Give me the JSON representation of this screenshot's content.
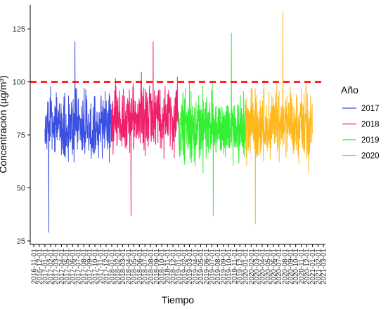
{
  "chart_data": {
    "type": "line",
    "xlabel": "Tiempo",
    "ylabel": "Concentración (µg/m³)",
    "ylim": [
      25,
      135
    ],
    "y_ticks": [
      25,
      50,
      75,
      100,
      125
    ],
    "x_range": [
      "2016-11-01",
      "2021-03-01"
    ],
    "x_tick_labels": [
      "2016-11-01",
      "2016-12-01",
      "2017-01-01",
      "2017-02-01",
      "2017-03-01",
      "2017-04-01",
      "2017-05-01",
      "2017-06-01",
      "2017-07-01",
      "2017-08-01",
      "2017-09-01",
      "2017-10-01",
      "2017-11-01",
      "2017-12-01",
      "2018-01-01",
      "2018-02-01",
      "2018-03-01",
      "2018-04-01",
      "2018-05-01",
      "2018-06-01",
      "2018-07-01",
      "2018-08-01",
      "2018-09-01",
      "2018-10-01",
      "2018-11-01",
      "2018-12-01",
      "2019-01-01",
      "2019-02-01",
      "2019-03-01",
      "2019-04-01",
      "2019-05-01",
      "2019-06-01",
      "2019-07-01",
      "2019-08-01",
      "2019-09-01",
      "2019-10-01",
      "2019-11-01",
      "2019-12-01",
      "2020-01-01",
      "2020-02-01",
      "2020-03-01",
      "2020-04-01",
      "2020-05-01",
      "2020-06-01",
      "2020-07-01",
      "2020-08-01",
      "2020-09-01",
      "2020-10-01",
      "2020-11-01",
      "2020-12-01",
      "2021-01-01",
      "2021-02-01",
      "2021-03-01"
    ],
    "threshold": {
      "value": 100,
      "color": "#ff0000",
      "style": "dashed"
    },
    "legend": {
      "title": "Año",
      "position": "right"
    },
    "series": [
      {
        "name": "2017",
        "color": "#3b4fe0",
        "start": "2017-01-01",
        "end": "2017-12-31",
        "min": 29,
        "max": 119,
        "typical": [
          58,
          100
        ]
      },
      {
        "name": "2018",
        "color": "#f01f6a",
        "start": "2018-01-01",
        "end": "2018-12-31",
        "min": 37,
        "max": 119,
        "typical": [
          60,
          105
        ]
      },
      {
        "name": "2019",
        "color": "#33f033",
        "start": "2019-01-01",
        "end": "2019-12-31",
        "min": 37,
        "max": 123,
        "typical": [
          55,
          102
        ]
      },
      {
        "name": "2020",
        "color": "#ffb81c",
        "start": "2020-01-01",
        "end": "2020-12-31",
        "min": 33,
        "max": 133,
        "typical": [
          55,
          103
        ]
      }
    ]
  }
}
